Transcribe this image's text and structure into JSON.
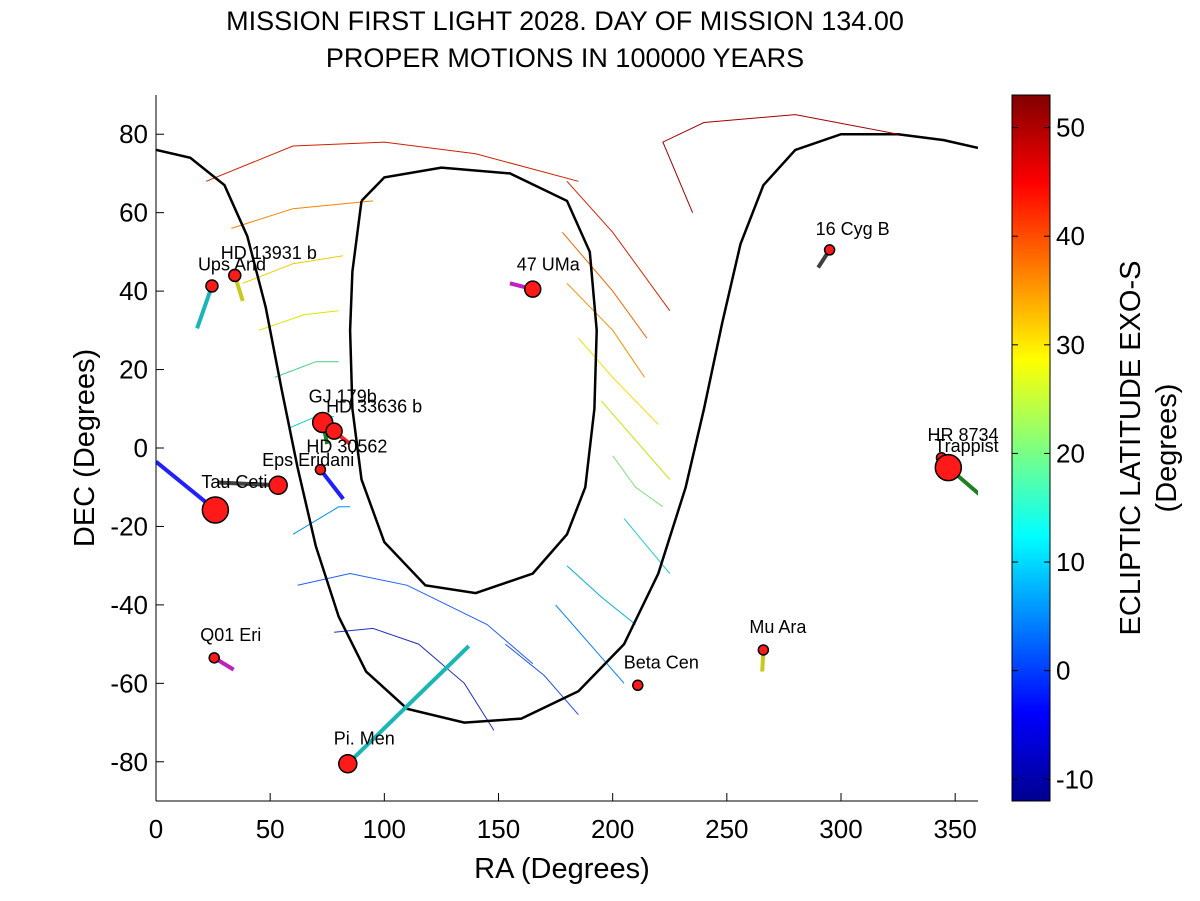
{
  "chart_data": {
    "type": "scatter",
    "title_line1": "MISSION FIRST LIGHT 2028. DAY OF MISSION 134.00",
    "title_line2": "PROPER MOTIONS IN 100000 YEARS",
    "xlabel": "RA (Degrees)",
    "ylabel": "DEC (Degrees)",
    "xlim": [
      0,
      360
    ],
    "ylim": [
      -90,
      90
    ],
    "xticks": [
      0,
      50,
      100,
      150,
      200,
      250,
      300,
      350
    ],
    "yticks": [
      -80,
      -60,
      -40,
      -20,
      0,
      20,
      40,
      60,
      80
    ],
    "grid": false,
    "colorbar": {
      "label_line1": "ECLIPTIC LATITUDE EXO-S",
      "label_line2": "(Degrees)",
      "range": [
        -12,
        53
      ],
      "ticks": [
        -10,
        0,
        10,
        20,
        30,
        40,
        50
      ],
      "colormap": "jet"
    },
    "stars": [
      {
        "name": "Ups And",
        "ra": 24.5,
        "dec": 41.3,
        "size": 6,
        "pm_end": [
          18,
          30.5
        ],
        "pm_color": "#1ab6b6"
      },
      {
        "name": "HD 13931 b",
        "ra": 34.5,
        "dec": 44,
        "size": 6,
        "pm_end": [
          38,
          37.5
        ],
        "pm_color": "#c8c81e"
      },
      {
        "name": "47 UMa",
        "ra": 165,
        "dec": 40.5,
        "size": 8,
        "pm_end": [
          155,
          42
        ],
        "pm_color": "#c020c0"
      },
      {
        "name": "16 Cyg B",
        "ra": 295,
        "dec": 50.5,
        "size": 5,
        "pm_end": [
          290,
          46
        ],
        "pm_color": "#404040"
      },
      {
        "name": "GJ 179b",
        "ra": 73,
        "dec": 6.5,
        "size": 10,
        "pm_end": [
          75,
          1
        ],
        "pm_color": "#208020"
      },
      {
        "name": "HD 33636 b",
        "ra": 78,
        "dec": 4.3,
        "size": 8,
        "pm_end": [
          85,
          1
        ],
        "pm_color": "#ff2020"
      },
      {
        "name": "HD 30562",
        "ra": 72,
        "dec": -5.5,
        "size": 5,
        "pm_end": [
          82,
          -13
        ],
        "pm_color": "#2020ff"
      },
      {
        "name": "Eps Eridani",
        "ra": 53.5,
        "dec": -9.5,
        "size": 9,
        "pm_end": [
          27,
          -8.8
        ],
        "pm_color": "#404040"
      },
      {
        "name": "Tau Ceti",
        "ra": 26,
        "dec": -15.8,
        "size": 13,
        "pm_end": [
          0,
          -3.5
        ],
        "pm_color": "#2020ff"
      },
      {
        "name": "HR 8734",
        "ra": 344,
        "dec": -2.5,
        "size": 5,
        "pm_end": [
          344,
          -2.5
        ],
        "pm_color": "#404040"
      },
      {
        "name": "Trappist",
        "ra": 347,
        "dec": -5,
        "size": 13,
        "pm_end": [
          361,
          -12
        ],
        "pm_color": "#208020"
      },
      {
        "name": "Q01 Eri",
        "ra": 25.5,
        "dec": -53.5,
        "size": 5,
        "pm_end": [
          34,
          -56.5
        ],
        "pm_color": "#c020c0"
      },
      {
        "name": "Pi. Men",
        "ra": 84,
        "dec": -80.5,
        "size": 9,
        "pm_end": [
          137,
          -50.5
        ],
        "pm_color": "#1ab6b6"
      },
      {
        "name": "Beta Cen",
        "ra": 211,
        "dec": -60.5,
        "size": 5,
        "pm_end": [
          211,
          -60.5
        ],
        "pm_color": "#404040"
      },
      {
        "name": "Mu Ara",
        "ra": 266,
        "dec": -51.5,
        "size": 5,
        "pm_end": [
          265.5,
          -57
        ],
        "pm_color": "#c8c81e"
      }
    ]
  }
}
